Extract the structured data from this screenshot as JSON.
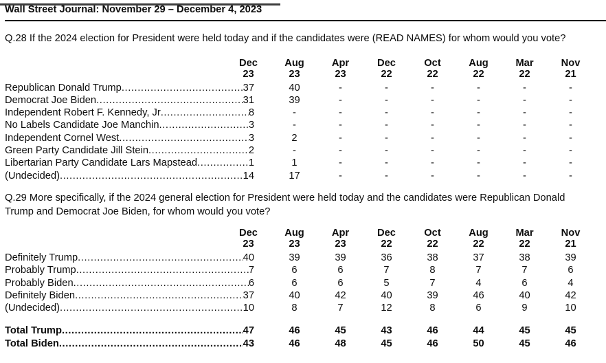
{
  "header": {
    "title": "Wall Street Journal: November 29 – December 4, 2023"
  },
  "q28": {
    "question": "Q.28 If the 2024 election for President were held today and if the candidates were (READ NAMES) for whom would you vote?",
    "columns": [
      {
        "month": "Dec",
        "year": "23"
      },
      {
        "month": "Aug",
        "year": "23"
      },
      {
        "month": "Apr",
        "year": "23"
      },
      {
        "month": "Dec",
        "year": "22"
      },
      {
        "month": "Oct",
        "year": "22"
      },
      {
        "month": "Aug",
        "year": "22"
      },
      {
        "month": "Mar",
        "year": "22"
      },
      {
        "month": "Nov",
        "year": "21"
      }
    ],
    "rows": [
      {
        "label": "Republican Donald Trump",
        "values": [
          "37",
          "40",
          "-",
          "-",
          "-",
          "-",
          "-",
          "-"
        ]
      },
      {
        "label": "Democrat Joe Biden",
        "values": [
          "31",
          "39",
          "-",
          "-",
          "-",
          "-",
          "-",
          "-"
        ]
      },
      {
        "label": "Independent Robert F. Kennedy, Jr",
        "values": [
          "8",
          "-",
          "-",
          "-",
          "-",
          "-",
          "-",
          "-"
        ]
      },
      {
        "label": "No Labels Candidate Joe Manchin",
        "values": [
          "3",
          "-",
          "-",
          "-",
          "-",
          "-",
          "-",
          "-"
        ]
      },
      {
        "label": "Independent Cornel West",
        "values": [
          "3",
          "2",
          "-",
          "-",
          "-",
          "-",
          "-",
          "-"
        ]
      },
      {
        "label": "Green Party Candidate Jill Stein",
        "values": [
          "2",
          "-",
          "-",
          "-",
          "-",
          "-",
          "-",
          "-"
        ]
      },
      {
        "label": "Libertarian Party Candidate Lars Mapstead",
        "values": [
          "1",
          "1",
          "-",
          "-",
          "-",
          "-",
          "-",
          "-"
        ]
      },
      {
        "label": "(Undecided)",
        "values": [
          "14",
          "17",
          "-",
          "-",
          "-",
          "-",
          "-",
          "-"
        ]
      }
    ]
  },
  "q29": {
    "question_line1": "Q.29 More specifically, if the 2024 general election for President were held today and the candidates were Republican Donald",
    "question_line2": "Trump and Democrat Joe Biden, for whom would you vote?",
    "columns": [
      {
        "month": "Dec",
        "year": "23"
      },
      {
        "month": "Aug",
        "year": "23"
      },
      {
        "month": "Apr",
        "year": "23"
      },
      {
        "month": "Dec",
        "year": "22"
      },
      {
        "month": "Oct",
        "year": "22"
      },
      {
        "month": "Aug",
        "year": "22"
      },
      {
        "month": "Mar",
        "year": "22"
      },
      {
        "month": "Nov",
        "year": "21"
      }
    ],
    "rows": [
      {
        "label": "Definitely Trump",
        "values": [
          "40",
          "39",
          "39",
          "36",
          "38",
          "37",
          "38",
          "39"
        ]
      },
      {
        "label": "Probably Trump",
        "values": [
          "7",
          "6",
          "6",
          "7",
          "8",
          "7",
          "7",
          "6"
        ]
      },
      {
        "label": "Probably Biden",
        "values": [
          "6",
          "6",
          "6",
          "5",
          "7",
          "4",
          "6",
          "4"
        ]
      },
      {
        "label": "Definitely Biden",
        "values": [
          "37",
          "40",
          "42",
          "40",
          "39",
          "46",
          "40",
          "42"
        ]
      },
      {
        "label": "(Undecided)",
        "values": [
          "10",
          "8",
          "7",
          "12",
          "8",
          "6",
          "9",
          "10"
        ]
      }
    ],
    "total_rows": [
      {
        "label": "Total Trump",
        "values": [
          "47",
          "46",
          "45",
          "43",
          "46",
          "44",
          "45",
          "45"
        ]
      },
      {
        "label": "Total Biden",
        "values": [
          "43",
          "46",
          "48",
          "45",
          "46",
          "50",
          "45",
          "46"
        ]
      }
    ]
  }
}
